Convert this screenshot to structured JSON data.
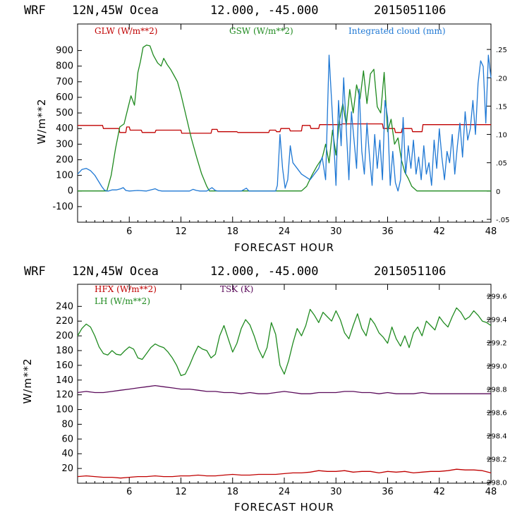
{
  "colors": {
    "red": "#c00000",
    "green": "#1f8a1f",
    "blue": "#1f78d4",
    "purple": "#5a0a5a",
    "axis": "#000000"
  },
  "chart_data": [
    {
      "type": "line",
      "header": {
        "model": "WRF",
        "location": "12N,45W Ocea",
        "coords": "12.000, -45.000",
        "datetime": "2015051106"
      },
      "xlabel": "FORECAST HOUR",
      "ylabel": "W/m**2",
      "xlim": [
        0,
        48
      ],
      "ylim": [
        -200,
        1070
      ],
      "y2lim": [
        -0.055,
        0.295
      ],
      "x_ticks": [
        6,
        12,
        18,
        24,
        30,
        36,
        42,
        48
      ],
      "y_ticks": [
        -100,
        0,
        100,
        200,
        300,
        400,
        500,
        600,
        700,
        800,
        900
      ],
      "y2_ticks": [
        ".25",
        ".20",
        ".15",
        ".10",
        ".05",
        "0",
        "-.05"
      ],
      "y2_tick_values": [
        0.25,
        0.2,
        0.15,
        0.1,
        0.05,
        0,
        -0.05
      ],
      "series": [
        {
          "name": "GLW (W/m**2)",
          "color_key": "red",
          "axis": "left",
          "x": [
            0,
            2.9,
            3.0,
            4.8,
            4.9,
            5.6,
            5.7,
            6.0,
            6.1,
            7.4,
            7.5,
            9.0,
            9.1,
            12.0,
            12.1,
            15.5,
            15.6,
            16.2,
            16.3,
            18.5,
            18.6,
            22.2,
            22.3,
            23.0,
            23.1,
            23.5,
            23.6,
            24.6,
            24.7,
            26.0,
            26.1,
            27.0,
            27.1,
            28.0,
            28.1,
            30.6,
            30.7,
            35.4,
            35.5,
            36.8,
            36.9,
            37.6,
            37.7,
            38.8,
            38.9,
            40.0,
            40.1,
            48
          ],
          "y": [
            420,
            420,
            400,
            400,
            375,
            375,
            410,
            410,
            390,
            390,
            375,
            375,
            390,
            390,
            370,
            370,
            395,
            395,
            380,
            380,
            375,
            375,
            390,
            390,
            380,
            380,
            400,
            400,
            385,
            385,
            420,
            420,
            400,
            400,
            425,
            425,
            430,
            430,
            400,
            400,
            375,
            375,
            400,
            400,
            380,
            380,
            425,
            425
          ]
        },
        {
          "name": "GSW (W/m**2)",
          "color_key": "green",
          "axis": "left",
          "x": [
            0,
            3.4,
            3.9,
            4.4,
            4.9,
            5.4,
            5.8,
            6.2,
            6.6,
            7.0,
            7.3,
            7.6,
            8.0,
            8.4,
            8.8,
            9.3,
            9.7,
            10.0,
            10.4,
            10.8,
            11.2,
            11.6,
            12.0,
            12.6,
            13.2,
            13.8,
            14.4,
            15.0,
            15.3,
            26.0,
            26.6,
            27.2,
            27.8,
            28.4,
            28.8,
            29.2,
            29.6,
            30.0,
            30.4,
            30.8,
            31.2,
            31.6,
            32.0,
            32.4,
            32.8,
            33.2,
            33.6,
            34.0,
            34.4,
            34.8,
            35.2,
            35.6,
            36.0,
            36.4,
            36.8,
            37.2,
            37.6,
            38.0,
            38.4,
            38.8,
            39.2,
            39.4,
            48
          ],
          "y": [
            0,
            0,
            100,
            270,
            410,
            430,
            520,
            610,
            550,
            760,
            830,
            920,
            935,
            930,
            870,
            820,
            800,
            850,
            810,
            780,
            740,
            700,
            620,
            480,
            340,
            220,
            110,
            30,
            0,
            0,
            30,
            100,
            160,
            210,
            300,
            180,
            390,
            230,
            450,
            560,
            420,
            650,
            500,
            680,
            590,
            770,
            560,
            750,
            780,
            540,
            500,
            760,
            380,
            460,
            300,
            340,
            200,
            120,
            80,
            30,
            10,
            0,
            0
          ]
        },
        {
          "name": "Integrated cloud (mm)",
          "color_key": "blue",
          "axis": "right",
          "x": [
            0,
            0.5,
            1,
            1.5,
            2,
            2.4,
            2.8,
            3.1,
            3.4,
            3.6,
            4,
            4.5,
            5,
            5.3,
            5.6,
            6,
            7,
            8,
            9,
            9.4,
            9.8,
            10.2,
            11,
            12,
            13,
            13.4,
            13.8,
            14.2,
            15,
            15.6,
            16,
            16.3,
            16.6,
            17,
            18,
            19,
            19.6,
            19.9,
            20.2,
            21,
            22,
            23,
            23.2,
            23.5,
            23.8,
            24.1,
            24.4,
            24.7,
            25,
            26,
            27,
            28,
            28.4,
            28.8,
            29.2,
            29.6,
            30,
            30.3,
            30.6,
            30.9,
            31.2,
            31.5,
            31.8,
            32.1,
            32.4,
            32.7,
            33,
            33.3,
            33.6,
            33.9,
            34.2,
            34.5,
            34.8,
            35.1,
            35.4,
            35.7,
            36,
            36.3,
            36.6,
            36.9,
            37.2,
            37.5,
            37.8,
            38.1,
            38.4,
            38.7,
            39,
            39.3,
            39.6,
            39.9,
            40.2,
            40.5,
            40.8,
            41.1,
            41.4,
            41.7,
            42,
            42.3,
            42.6,
            42.9,
            43.2,
            43.5,
            43.8,
            44.1,
            44.4,
            44.7,
            45,
            45.3,
            45.6,
            45.9,
            46.2,
            46.5,
            46.8,
            47.1,
            47.4,
            47.7,
            48
          ],
          "y": [
            0.03,
            0.038,
            0.04,
            0.036,
            0.028,
            0.018,
            0.008,
            0.002,
            0,
            0,
            0.002,
            0.002,
            0.004,
            0.006,
            0.001,
            0,
            0.001,
            0,
            0.004,
            0.001,
            0,
            0,
            0,
            0,
            0,
            0.003,
            0.001,
            0,
            0,
            0.006,
            0.001,
            0,
            0,
            0,
            0,
            0,
            0.005,
            0,
            0,
            0,
            0,
            0,
            0.01,
            0.1,
            0.04,
            0.005,
            0.02,
            0.08,
            0.05,
            0.03,
            0.02,
            0.04,
            0.06,
            0.02,
            0.24,
            0.13,
            0.01,
            0.16,
            0.08,
            0.2,
            0.11,
            0.02,
            0.14,
            0.09,
            0.04,
            0.18,
            0.07,
            0.03,
            0.12,
            0.06,
            0.01,
            0.1,
            0.04,
            0.09,
            0.02,
            0.16,
            0.13,
            0.01,
            0.07,
            0.015,
            0,
            0.02,
            0.13,
            0.03,
            0.08,
            0.04,
            0.09,
            0.03,
            0.06,
            0.02,
            0.08,
            0.03,
            0.05,
            0.01,
            0.09,
            0.04,
            0.11,
            0.06,
            0.02,
            0.07,
            0.05,
            0.1,
            0.03,
            0.08,
            0.12,
            0.06,
            0.14,
            0.09,
            0.11,
            0.16,
            0.1,
            0.19,
            0.23,
            0.22,
            0.12,
            0.24,
            0.2
          ]
        }
      ],
      "legend": [
        "GLW (W/m**2)",
        "GSW (W/m**2)",
        "Integrated cloud (mm)"
      ]
    },
    {
      "type": "line",
      "header": {
        "model": "WRF",
        "location": "12N,45W Ocea",
        "coords": "12.000, -45.000",
        "datetime": "2015051106"
      },
      "xlabel": "FORECAST HOUR",
      "ylabel": "W/m**2",
      "xlim": [
        0,
        48
      ],
      "ylim": [
        0,
        270
      ],
      "y2lim": [
        297.992,
        299.7
      ],
      "x_ticks": [
        6,
        12,
        18,
        24,
        30,
        36,
        42,
        48
      ],
      "y_ticks": [
        20,
        40,
        60,
        80,
        100,
        120,
        140,
        160,
        180,
        200,
        220,
        240
      ],
      "y2_ticks": [
        "299.6",
        "299.4",
        "299.2",
        "299.0",
        "298.8",
        "298.6",
        "298.4",
        "298.2",
        "298.0"
      ],
      "y2_tick_values": [
        299.6,
        299.4,
        299.2,
        299.0,
        298.8,
        298.6,
        298.4,
        298.2,
        298.0
      ],
      "series": [
        {
          "name": "HFX (W/m**2)",
          "color_key": "red",
          "axis": "left",
          "x": [
            0,
            1,
            2,
            3,
            4,
            5,
            6,
            7,
            8,
            9,
            10,
            11,
            12,
            13,
            14,
            15,
            16,
            17,
            18,
            19,
            20,
            21,
            22,
            23,
            24,
            25,
            26,
            27,
            28,
            29,
            30,
            31,
            32,
            33,
            34,
            35,
            36,
            37,
            38,
            39,
            40,
            41,
            42,
            43,
            44,
            45,
            46,
            47,
            48
          ],
          "y": [
            9,
            10,
            9,
            8,
            8,
            7,
            8,
            9,
            9,
            10,
            9,
            9,
            10,
            10,
            11,
            10,
            10,
            11,
            12,
            11,
            11,
            12,
            12,
            12,
            13,
            14,
            14,
            15,
            17,
            16,
            16,
            17,
            15,
            16,
            16,
            14,
            16,
            15,
            16,
            14,
            15,
            16,
            16,
            17,
            19,
            18,
            18,
            17,
            14
          ]
        },
        {
          "name": "LH (W/m**2)",
          "color_key": "green",
          "axis": "left",
          "x": [
            0,
            0.5,
            1,
            1.5,
            2,
            2.5,
            3,
            3.5,
            4,
            4.5,
            5,
            5.5,
            6,
            6.5,
            7,
            7.5,
            8,
            8.5,
            9,
            9.5,
            10,
            10.5,
            11,
            11.5,
            12,
            12.5,
            13,
            13.5,
            14,
            14.5,
            15,
            15.5,
            16,
            16.5,
            17,
            17.5,
            18,
            18.5,
            19,
            19.5,
            20,
            20.5,
            21,
            21.5,
            22,
            22.5,
            23,
            23.5,
            24,
            24.5,
            25,
            25.5,
            26,
            26.5,
            27,
            27.5,
            28,
            28.5,
            29,
            29.5,
            30,
            30.5,
            31,
            31.5,
            32,
            32.5,
            33,
            33.5,
            34,
            34.5,
            35,
            35.5,
            36,
            36.5,
            37,
            37.5,
            38,
            38.5,
            39,
            39.5,
            40,
            40.5,
            41,
            41.5,
            42,
            42.5,
            43,
            43.5,
            44,
            44.5,
            45,
            45.5,
            46,
            46.5,
            47,
            47.5,
            48
          ],
          "y": [
            200,
            210,
            216,
            212,
            200,
            185,
            176,
            174,
            180,
            175,
            174,
            180,
            185,
            182,
            170,
            168,
            176,
            184,
            189,
            186,
            184,
            178,
            170,
            160,
            146,
            148,
            160,
            174,
            186,
            182,
            180,
            170,
            175,
            200,
            214,
            196,
            178,
            190,
            210,
            222,
            215,
            200,
            182,
            170,
            184,
            218,
            202,
            160,
            148,
            166,
            190,
            210,
            200,
            214,
            236,
            228,
            218,
            232,
            226,
            220,
            234,
            222,
            204,
            196,
            214,
            230,
            210,
            200,
            224,
            216,
            204,
            198,
            190,
            212,
            196,
            186,
            200,
            184,
            204,
            212,
            200,
            220,
            214,
            208,
            226,
            218,
            212,
            226,
            238,
            232,
            222,
            226,
            234,
            228,
            220,
            218,
            214
          ]
        },
        {
          "name": "TSK (K)",
          "color_key": "purple",
          "axis": "right",
          "x": [
            0,
            1,
            2,
            3,
            4,
            5,
            6,
            7,
            8,
            9,
            10,
            11,
            12,
            13,
            14,
            15,
            16,
            17,
            18,
            19,
            20,
            21,
            22,
            23,
            24,
            25,
            26,
            27,
            28,
            29,
            30,
            31,
            32,
            33,
            34,
            35,
            36,
            37,
            38,
            39,
            40,
            41,
            42,
            43,
            44,
            45,
            46,
            47,
            48
          ],
          "y": [
            298.77,
            298.78,
            298.77,
            298.77,
            298.78,
            298.79,
            298.8,
            298.81,
            298.82,
            298.83,
            298.82,
            298.81,
            298.8,
            298.8,
            298.79,
            298.78,
            298.78,
            298.77,
            298.77,
            298.76,
            298.77,
            298.76,
            298.76,
            298.77,
            298.78,
            298.77,
            298.76,
            298.76,
            298.77,
            298.77,
            298.77,
            298.78,
            298.78,
            298.77,
            298.77,
            298.76,
            298.77,
            298.76,
            298.76,
            298.76,
            298.77,
            298.76,
            298.76,
            298.76,
            298.76,
            298.76,
            298.76,
            298.76,
            298.76
          ]
        }
      ],
      "legend": [
        "HFX (W/m**2)",
        "LH (W/m**2)",
        "TSK (K)"
      ]
    }
  ]
}
